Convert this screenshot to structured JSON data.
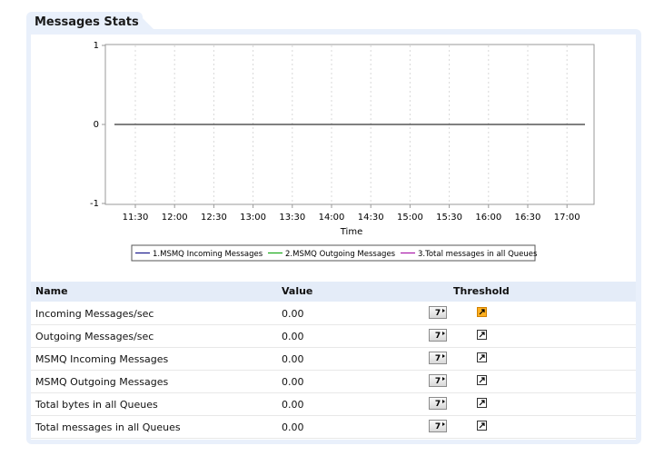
{
  "panel": {
    "title": "Messages Stats"
  },
  "chart_data": {
    "type": "line",
    "x": [
      "11:30",
      "12:00",
      "12:30",
      "13:00",
      "13:30",
      "14:00",
      "14:30",
      "15:00",
      "15:30",
      "16:00",
      "16:30",
      "17:00"
    ],
    "xlabel": "Time",
    "ylabel": "",
    "ylim": [
      -1,
      1
    ],
    "yticks": [
      "1",
      "0",
      "-1"
    ],
    "grid": "vertical dashed",
    "legend_position": "bottom",
    "series": [
      {
        "name": "1.MSMQ Incoming Messages",
        "color": "#000080",
        "values": [
          0,
          0,
          0,
          0,
          0,
          0,
          0,
          0,
          0,
          0,
          0,
          0
        ]
      },
      {
        "name": "2.MSMQ Outgoing Messages",
        "color": "#00a000",
        "values": [
          0,
          0,
          0,
          0,
          0,
          0,
          0,
          0,
          0,
          0,
          0,
          0
        ]
      },
      {
        "name": "3.Total messages in all Queues",
        "color": "#a000a0",
        "values": [
          0,
          0,
          0,
          0,
          0,
          0,
          0,
          0,
          0,
          0,
          0,
          0
        ]
      }
    ]
  },
  "table": {
    "headers": {
      "name": "Name",
      "value": "Value",
      "threshold": "Threshold"
    },
    "rows": [
      {
        "name": "Incoming Messages/sec",
        "value": "0.00",
        "button": "7",
        "threshold_active": true
      },
      {
        "name": "Outgoing Messages/sec",
        "value": "0.00",
        "button": "7",
        "threshold_active": false
      },
      {
        "name": "MSMQ Incoming Messages",
        "value": "0.00",
        "button": "7",
        "threshold_active": false
      },
      {
        "name": "MSMQ Outgoing Messages",
        "value": "0.00",
        "button": "7",
        "threshold_active": false
      },
      {
        "name": "Total bytes in all Queues",
        "value": "0.00",
        "button": "7",
        "threshold_active": false
      },
      {
        "name": "Total messages in all Queues",
        "value": "0.00",
        "button": "7",
        "threshold_active": false
      }
    ]
  },
  "colors": {
    "panel_bg": "#e9f0fb",
    "header_bg": "#e4ecf8",
    "threshold_active": "#ffb020"
  },
  "icons": {
    "threshold": "threshold-edit-icon",
    "graph_button": "seven-day-graph-icon"
  }
}
